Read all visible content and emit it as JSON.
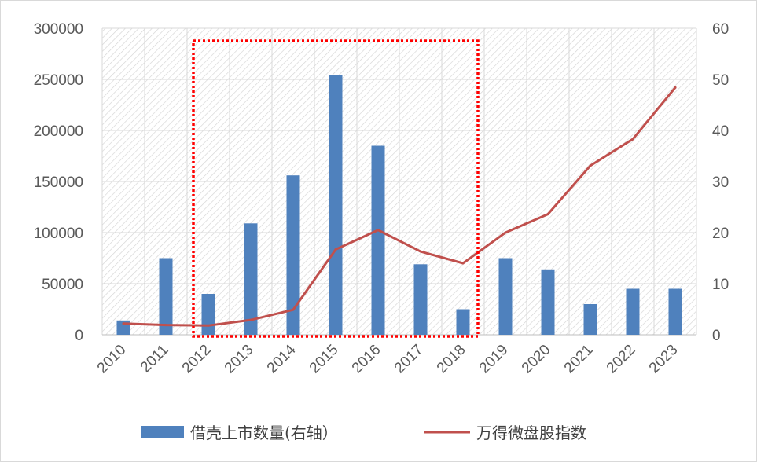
{
  "chart_data": {
    "type": "bar+line",
    "categories": [
      "2010",
      "2011",
      "2012",
      "2013",
      "2014",
      "2015",
      "2016",
      "2017",
      "2018",
      "2019",
      "2020",
      "2021",
      "2022",
      "2023"
    ],
    "series": [
      {
        "name": "借壳上市数量(右轴）",
        "type": "bar",
        "axis": "left",
        "color": "#4f81bd",
        "values": [
          14000,
          75000,
          40000,
          109000,
          156000,
          254000,
          185000,
          69000,
          25000,
          75000,
          64000,
          30000,
          45000,
          45000
        ]
      },
      {
        "name": "万得微盘股指数",
        "type": "line",
        "axis": "right",
        "color": "#c0504d",
        "values": [
          2.2,
          1.9,
          1.8,
          2.9,
          4.9,
          16.7,
          20.5,
          16.3,
          14.0,
          20.0,
          23.6,
          33.1,
          38.3,
          48.4
        ]
      }
    ],
    "y_left": {
      "ylim": [
        0,
        300000
      ],
      "ticks": [
        "0",
        "50000",
        "100000",
        "150000",
        "200000",
        "250000",
        "300000"
      ]
    },
    "y_right": {
      "ylim": [
        0,
        60
      ],
      "ticks": [
        "0",
        "10",
        "20",
        "30",
        "40",
        "50",
        "60"
      ]
    },
    "highlight_range": [
      "2012",
      "2018"
    ],
    "highlight_color": "#ff0000",
    "grid": true,
    "legend": "bottom"
  }
}
